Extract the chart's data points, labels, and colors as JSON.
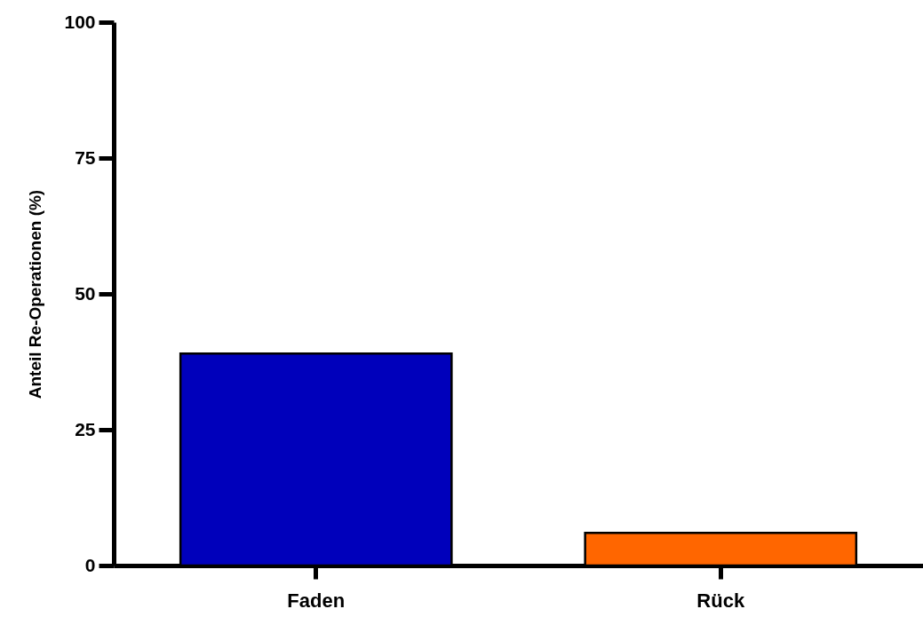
{
  "chart_data": {
    "type": "bar",
    "categories": [
      "Faden",
      "Rück"
    ],
    "values": [
      39,
      6
    ],
    "colors": [
      "#0000bb",
      "#ff6600"
    ],
    "ylabel": "Anteil Re-Operationen (%)",
    "ylim": [
      0,
      100
    ],
    "yticks": [
      0,
      25,
      50,
      75,
      100
    ],
    "grid": false
  }
}
